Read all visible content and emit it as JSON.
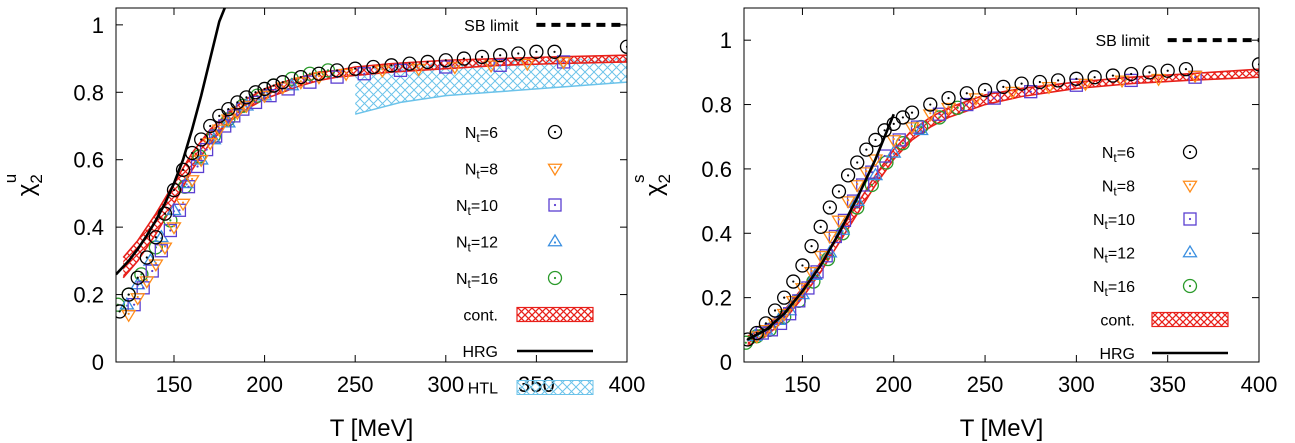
{
  "colors": {
    "Nt6": "#000000",
    "Nt8": "#ff8c1a",
    "Nt10": "#5b3fd1",
    "Nt12": "#3a8fe0",
    "Nt16": "#2a9a2a",
    "cont": "#e8201a",
    "HRG": "#000000",
    "HTL": "#6cc3ea"
  },
  "icons": {
    "Nt6": "circle-dot",
    "Nt8": "triangle-down-dot",
    "Nt10": "square-dot",
    "Nt12": "triangle-up-dot",
    "Nt16": "circle-dot"
  },
  "chart_data": [
    {
      "type": "scatter",
      "panel": "left",
      "xlabel": "T [MeV]",
      "ylabel_main": "χ",
      "ylabel_sub": "2",
      "ylabel_sup": "u",
      "xlim": [
        118,
        400
      ],
      "ylim": [
        0,
        1.05
      ],
      "xticks": [
        "150",
        "200",
        "250",
        "300",
        "350",
        "400"
      ],
      "xtick_values": [
        150,
        200,
        250,
        300,
        350,
        400
      ],
      "yticks": [
        "0",
        "0.2",
        "0.4",
        "0.6",
        "0.8",
        "1"
      ],
      "ytick_values": [
        0,
        0.2,
        0.4,
        0.6,
        0.8,
        1.0
      ],
      "grid": false,
      "legend_position": "right",
      "sb_limit": {
        "label": "SB limit",
        "value": 1.0,
        "x_range": [
          350,
          400
        ]
      },
      "series": [
        {
          "name": "N_t=6",
          "key": "Nt6",
          "marker": "circle",
          "x": [
            120,
            125,
            130,
            135,
            140,
            145,
            150,
            155,
            160,
            165,
            170,
            175,
            180,
            185,
            190,
            195,
            200,
            205,
            210,
            220,
            230,
            240,
            250,
            260,
            270,
            280,
            290,
            300,
            310,
            320,
            330,
            340,
            350,
            360,
            400
          ],
          "y": [
            0.15,
            0.2,
            0.25,
            0.31,
            0.37,
            0.44,
            0.51,
            0.57,
            0.62,
            0.66,
            0.7,
            0.73,
            0.75,
            0.77,
            0.785,
            0.8,
            0.81,
            0.82,
            0.83,
            0.845,
            0.855,
            0.865,
            0.87,
            0.875,
            0.88,
            0.885,
            0.89,
            0.895,
            0.9,
            0.905,
            0.91,
            0.915,
            0.92,
            0.92,
            0.935
          ]
        },
        {
          "name": "N_t=8",
          "key": "Nt8",
          "marker": "triangle-down",
          "x": [
            125,
            130,
            135,
            140,
            145,
            150,
            155,
            160,
            165,
            170,
            175,
            180,
            185,
            190,
            200,
            210,
            220,
            230,
            245,
            265,
            285,
            305,
            325,
            345,
            365
          ],
          "y": [
            0.14,
            0.19,
            0.24,
            0.29,
            0.34,
            0.4,
            0.47,
            0.54,
            0.6,
            0.65,
            0.69,
            0.72,
            0.74,
            0.76,
            0.79,
            0.815,
            0.83,
            0.845,
            0.855,
            0.865,
            0.87,
            0.875,
            0.88,
            0.885,
            0.89
          ]
        },
        {
          "name": "N_t=10",
          "key": "Nt10",
          "marker": "square",
          "x": [
            128,
            133,
            138,
            143,
            148,
            153,
            158,
            163,
            168,
            173,
            178,
            183,
            188,
            195,
            203,
            213,
            225,
            240,
            255,
            275,
            300,
            330,
            365
          ],
          "y": [
            0.17,
            0.22,
            0.27,
            0.33,
            0.39,
            0.45,
            0.52,
            0.58,
            0.63,
            0.67,
            0.7,
            0.73,
            0.75,
            0.77,
            0.79,
            0.81,
            0.83,
            0.845,
            0.855,
            0.865,
            0.875,
            0.88,
            0.89
          ]
        },
        {
          "name": "N_t=12",
          "key": "Nt12",
          "marker": "triangle-up",
          "x": [
            124,
            130,
            137,
            143,
            150,
            157,
            165,
            172,
            180,
            190,
            200,
            215
          ],
          "y": [
            0.17,
            0.23,
            0.3,
            0.37,
            0.45,
            0.53,
            0.6,
            0.66,
            0.71,
            0.76,
            0.79,
            0.82
          ]
        },
        {
          "name": "N_t=16",
          "key": "Nt16",
          "marker": "circle",
          "x": [
            119,
            125,
            132,
            140,
            148,
            156,
            164,
            172,
            180,
            188,
            196,
            205,
            215,
            225,
            235
          ],
          "y": [
            0.17,
            0.2,
            0.26,
            0.34,
            0.42,
            0.52,
            0.61,
            0.67,
            0.72,
            0.76,
            0.79,
            0.82,
            0.84,
            0.855,
            0.865
          ]
        }
      ],
      "cont": {
        "name": "cont.",
        "x": [
          122,
          130,
          140,
          150,
          160,
          170,
          180,
          190,
          200,
          210,
          220,
          230,
          240,
          250,
          270,
          300,
          330,
          360,
          400
        ],
        "lower": [
          0.25,
          0.3,
          0.38,
          0.47,
          0.57,
          0.65,
          0.71,
          0.75,
          0.78,
          0.8,
          0.82,
          0.835,
          0.845,
          0.85,
          0.86,
          0.87,
          0.88,
          0.885,
          0.89
        ],
        "upper": [
          0.31,
          0.36,
          0.44,
          0.53,
          0.62,
          0.69,
          0.74,
          0.78,
          0.81,
          0.83,
          0.845,
          0.86,
          0.865,
          0.875,
          0.885,
          0.895,
          0.9,
          0.905,
          0.91
        ]
      },
      "hrg": {
        "name": "HRG",
        "x": [
          118,
          125,
          130,
          135,
          140,
          145,
          150,
          155,
          160,
          165,
          170,
          175,
          178
        ],
        "y": [
          0.26,
          0.3,
          0.335,
          0.375,
          0.42,
          0.47,
          0.53,
          0.6,
          0.69,
          0.79,
          0.9,
          1.01,
          1.05
        ]
      },
      "htl": {
        "name": "HTL",
        "x": [
          250,
          275,
          300,
          325,
          350,
          375,
          400
        ],
        "lower": [
          0.735,
          0.77,
          0.79,
          0.8,
          0.81,
          0.82,
          0.83
        ],
        "upper": [
          0.875,
          0.882,
          0.888,
          0.892,
          0.896,
          0.9,
          0.902
        ]
      }
    },
    {
      "type": "scatter",
      "panel": "right",
      "xlabel": "T [MeV]",
      "ylabel_main": "χ",
      "ylabel_sub": "2",
      "ylabel_sup": "s",
      "xlim": [
        118,
        400
      ],
      "ylim": [
        0,
        1.1
      ],
      "xticks": [
        "150",
        "200",
        "250",
        "300",
        "350",
        "400"
      ],
      "xtick_values": [
        150,
        200,
        250,
        300,
        350,
        400
      ],
      "yticks": [
        "0",
        "0.2",
        "0.4",
        "0.6",
        "0.8",
        "1"
      ],
      "ytick_values": [
        0,
        0.2,
        0.4,
        0.6,
        0.8,
        1.0
      ],
      "grid": false,
      "legend_position": "right",
      "sb_limit": {
        "label": "SB limit",
        "value": 1.0,
        "x_range": [
          350,
          400
        ]
      },
      "series": [
        {
          "name": "N_t=6",
          "key": "Nt6",
          "marker": "circle",
          "x": [
            120,
            125,
            130,
            135,
            140,
            145,
            150,
            155,
            160,
            165,
            170,
            175,
            180,
            185,
            190,
            195,
            200,
            205,
            210,
            220,
            230,
            240,
            250,
            260,
            270,
            280,
            290,
            300,
            310,
            320,
            330,
            340,
            350,
            360,
            400
          ],
          "y": [
            0.07,
            0.09,
            0.12,
            0.16,
            0.2,
            0.25,
            0.3,
            0.36,
            0.42,
            0.48,
            0.53,
            0.58,
            0.62,
            0.66,
            0.69,
            0.72,
            0.74,
            0.76,
            0.775,
            0.8,
            0.82,
            0.835,
            0.845,
            0.855,
            0.865,
            0.87,
            0.875,
            0.88,
            0.885,
            0.89,
            0.895,
            0.9,
            0.905,
            0.91,
            0.925
          ]
        },
        {
          "name": "N_t=8",
          "key": "Nt8",
          "marker": "triangle-down",
          "x": [
            125,
            130,
            135,
            140,
            145,
            150,
            155,
            160,
            165,
            170,
            175,
            180,
            185,
            190,
            200,
            210,
            220,
            230,
            245,
            265,
            285,
            305,
            325,
            345,
            365
          ],
          "y": [
            0.08,
            0.1,
            0.12,
            0.15,
            0.19,
            0.23,
            0.28,
            0.33,
            0.39,
            0.44,
            0.5,
            0.55,
            0.59,
            0.63,
            0.69,
            0.73,
            0.77,
            0.79,
            0.82,
            0.84,
            0.855,
            0.865,
            0.875,
            0.88,
            0.89
          ]
        },
        {
          "name": "N_t=10",
          "key": "Nt10",
          "marker": "square",
          "x": [
            128,
            133,
            138,
            143,
            148,
            153,
            158,
            163,
            168,
            173,
            178,
            183,
            188,
            195,
            203,
            213,
            225,
            240,
            255,
            275,
            300,
            330,
            365
          ],
          "y": [
            0.09,
            0.1,
            0.12,
            0.15,
            0.19,
            0.23,
            0.28,
            0.33,
            0.39,
            0.44,
            0.5,
            0.55,
            0.59,
            0.64,
            0.69,
            0.73,
            0.77,
            0.8,
            0.82,
            0.84,
            0.86,
            0.875,
            0.885
          ]
        },
        {
          "name": "N_t=12",
          "key": "Nt12",
          "marker": "triangle-up",
          "x": [
            124,
            130,
            137,
            143,
            150,
            157,
            165,
            172,
            180,
            190,
            200,
            215
          ],
          "y": [
            0.08,
            0.1,
            0.13,
            0.16,
            0.21,
            0.27,
            0.34,
            0.41,
            0.5,
            0.58,
            0.65,
            0.72
          ]
        },
        {
          "name": "N_t=16",
          "key": "Nt16",
          "marker": "circle",
          "x": [
            119,
            125,
            132,
            140,
            148,
            156,
            164,
            172,
            180,
            188,
            196,
            205,
            215,
            225,
            235
          ],
          "y": [
            0.06,
            0.08,
            0.1,
            0.14,
            0.19,
            0.25,
            0.32,
            0.4,
            0.48,
            0.55,
            0.62,
            0.68,
            0.73,
            0.76,
            0.79
          ]
        }
      ],
      "cont": {
        "name": "cont.",
        "x": [
          120,
          130,
          140,
          150,
          160,
          170,
          180,
          190,
          200,
          210,
          220,
          230,
          240,
          250,
          270,
          300,
          330,
          360,
          400
        ],
        "lower": [
          0.05,
          0.08,
          0.13,
          0.2,
          0.28,
          0.37,
          0.46,
          0.55,
          0.63,
          0.69,
          0.73,
          0.76,
          0.78,
          0.8,
          0.825,
          0.85,
          0.865,
          0.875,
          0.885
        ],
        "upper": [
          0.08,
          0.11,
          0.16,
          0.23,
          0.31,
          0.4,
          0.49,
          0.58,
          0.66,
          0.72,
          0.76,
          0.79,
          0.81,
          0.83,
          0.85,
          0.87,
          0.885,
          0.895,
          0.91
        ]
      },
      "hrg": {
        "name": "HRG",
        "x": [
          120,
          130,
          140,
          150,
          160,
          170,
          180,
          190,
          200
        ],
        "y": [
          0.07,
          0.1,
          0.15,
          0.22,
          0.3,
          0.4,
          0.51,
          0.63,
          0.77
        ]
      }
    }
  ]
}
